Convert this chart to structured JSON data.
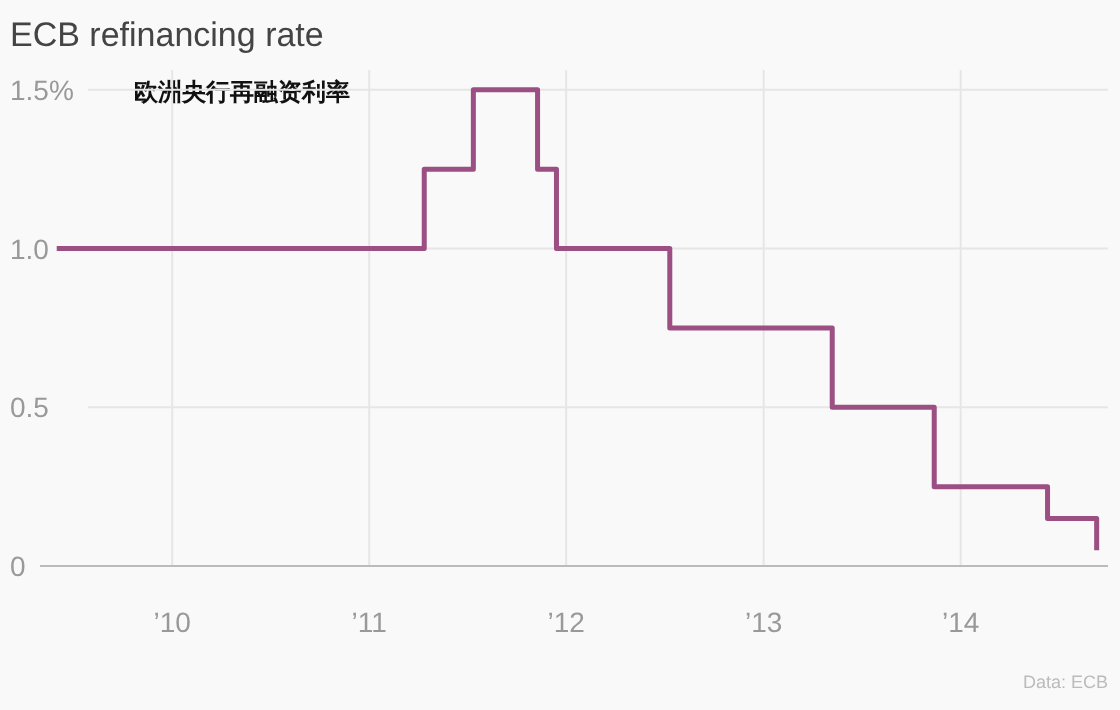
{
  "chart_data": {
    "type": "step",
    "title": "ECB refinancing rate",
    "subtitle": "欧洲央行再融资利率",
    "x": [
      "2009-06",
      "2011-04-13",
      "2011-07-13",
      "2011-11-09",
      "2011-12-14",
      "2012-07-11",
      "2013-05-08",
      "2013-11-13",
      "2014-06-11",
      "2014-09-10"
    ],
    "series": [
      {
        "color": "#9b4f82",
        "values": [
          1,
          1.25,
          1.5,
          1.25,
          1,
          0.75,
          0.5,
          0.25,
          0.15,
          0.05
        ]
      }
    ],
    "xlim": [
      "2009-05",
      "2014-10"
    ],
    "xticks": [
      {
        "value": "2010",
        "label": "’10"
      },
      {
        "value": "2011",
        "label": "’11"
      },
      {
        "value": "2012",
        "label": "’12"
      },
      {
        "value": "2013",
        "label": "’13"
      },
      {
        "value": "2014",
        "label": "’14"
      }
    ],
    "ylim": [
      0,
      1.55
    ],
    "yticks": [
      0,
      0.5,
      {
        "value": 1,
        "label": "1.0"
      },
      {
        "value": 1.5,
        "label": "1.5%"
      }
    ],
    "grid": true,
    "annotations": [
      "Data: ECB"
    ]
  }
}
